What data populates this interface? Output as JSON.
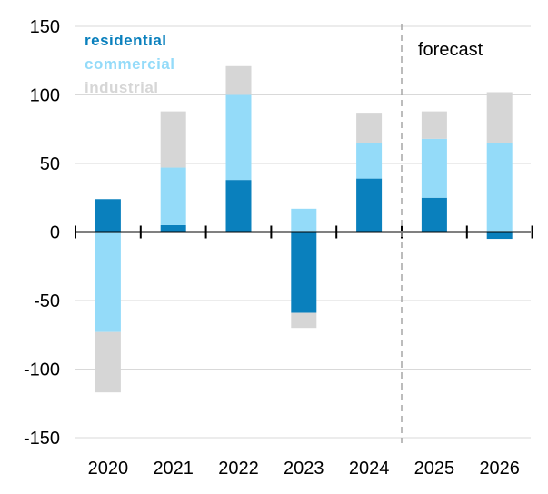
{
  "chart_data": {
    "type": "bar",
    "stacked": true,
    "categories": [
      "2020",
      "2021",
      "2022",
      "2023",
      "2024",
      "2025",
      "2026"
    ],
    "series": [
      {
        "name": "residential",
        "color": "#0a80bd",
        "values": [
          24,
          5,
          38,
          -59,
          39,
          25,
          -5
        ]
      },
      {
        "name": "commercial",
        "color": "#94dbf9",
        "values": [
          -73,
          42,
          62,
          17,
          26,
          43,
          65
        ]
      },
      {
        "name": "industrial",
        "color": "#d6d6d6",
        "values": [
          -44,
          41,
          21,
          -11,
          22,
          20,
          37
        ]
      }
    ],
    "ylim": [
      -150,
      150
    ],
    "yticks": [
      150,
      100,
      50,
      0,
      -50,
      -100,
      -150
    ],
    "ytick_labels": [
      "150",
      "100",
      "50",
      "0",
      "-50",
      "-100",
      "-150"
    ],
    "grid": true,
    "legend_position": "top-left",
    "annotations": [
      {
        "text": "forecast",
        "after_category": "2024"
      }
    ],
    "title": "",
    "xlabel": "",
    "ylabel": ""
  }
}
